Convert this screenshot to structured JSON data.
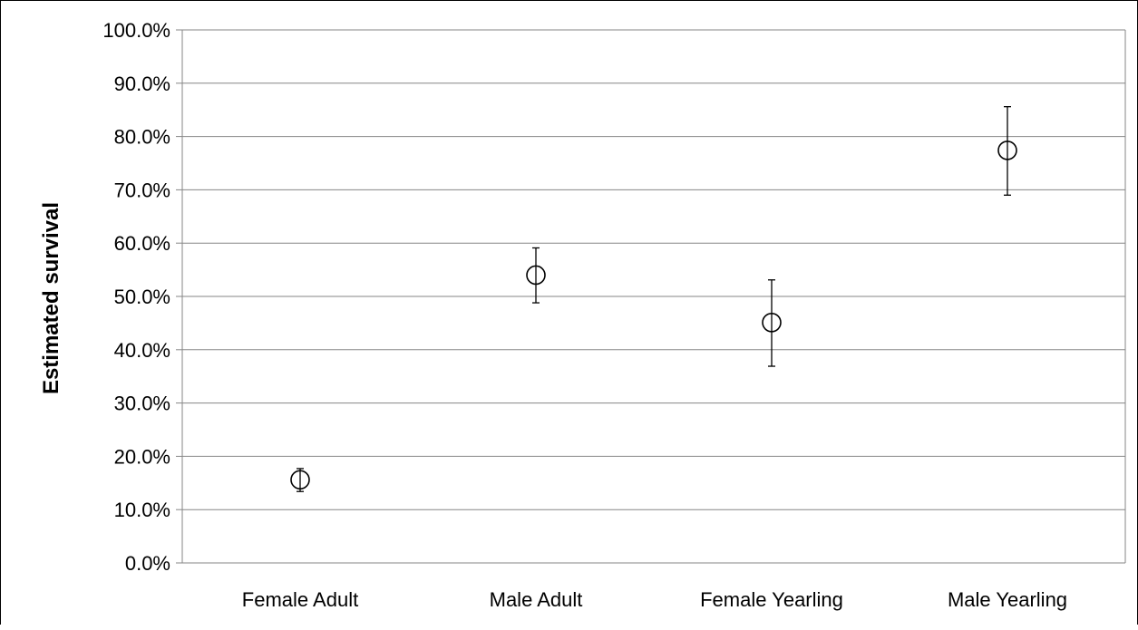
{
  "chart_data": {
    "type": "scatter",
    "title": "",
    "xlabel": "",
    "ylabel": "Estimated survival",
    "ylim": [
      0,
      100
    ],
    "y_tick_step": 10,
    "y_tick_format": "percent_1dp",
    "grid": true,
    "legend": "none",
    "categories": [
      "Female Adult",
      "Male Adult",
      "Female Yearling",
      "Male Yearling"
    ],
    "values": [
      15.6,
      54.0,
      45.1,
      77.4
    ],
    "error_low": [
      13.4,
      48.8,
      36.9,
      69.0
    ],
    "error_high": [
      17.7,
      59.1,
      53.1,
      85.6
    ],
    "marker": "open-circle",
    "colors": {
      "marker": "#000000",
      "grid": "#868686",
      "axis": "#868686",
      "text": "#000000"
    }
  }
}
